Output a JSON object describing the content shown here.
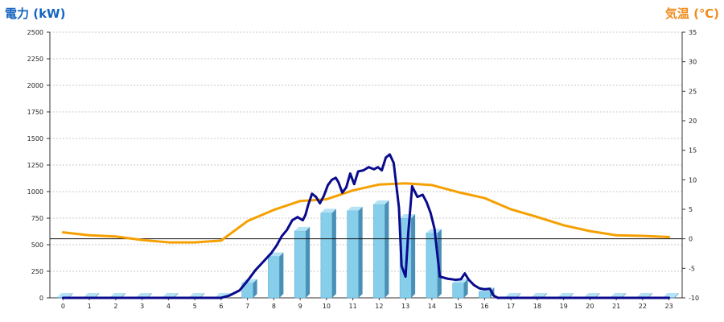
{
  "chart_data": {
    "type": "bar+line",
    "left_axis": {
      "title": "電力 (kW)",
      "min": 0,
      "max": 2500,
      "ticks": [
        0,
        250,
        500,
        750,
        1000,
        1250,
        1500,
        1750,
        2000,
        2250,
        2500
      ]
    },
    "right_axis": {
      "title": "気温 (℃)",
      "min": -10,
      "max": 35,
      "ticks": [
        -10,
        -5,
        0,
        5,
        10,
        15,
        20,
        25,
        30,
        35
      ]
    },
    "categories": [
      "0",
      "1",
      "2",
      "3",
      "4",
      "5",
      "6",
      "7",
      "8",
      "9",
      "10",
      "11",
      "12",
      "13",
      "14",
      "15",
      "16",
      "17",
      "18",
      "19",
      "20",
      "21",
      "22",
      "23"
    ],
    "grid": true,
    "bars": {
      "axis": "left",
      "color": "#87ceeb",
      "values": [
        5,
        5,
        5,
        5,
        5,
        5,
        5,
        140,
        390,
        630,
        800,
        820,
        880,
        750,
        610,
        140,
        60,
        5,
        5,
        5,
        5,
        5,
        5,
        5
      ]
    },
    "power_line": {
      "axis": "left",
      "color": "#0a0a8c",
      "points": [
        [
          0,
          0
        ],
        [
          1,
          0
        ],
        [
          2,
          0
        ],
        [
          3,
          0
        ],
        [
          4,
          0
        ],
        [
          5,
          0
        ],
        [
          6,
          0
        ],
        [
          6.3,
          20
        ],
        [
          6.7,
          70
        ],
        [
          7,
          160
        ],
        [
          7.3,
          260
        ],
        [
          7.6,
          340
        ],
        [
          7.9,
          420
        ],
        [
          8.1,
          490
        ],
        [
          8.3,
          580
        ],
        [
          8.5,
          640
        ],
        [
          8.7,
          730
        ],
        [
          8.9,
          760
        ],
        [
          9.1,
          730
        ],
        [
          9.2,
          780
        ],
        [
          9.3,
          870
        ],
        [
          9.45,
          980
        ],
        [
          9.6,
          950
        ],
        [
          9.75,
          890
        ],
        [
          9.9,
          960
        ],
        [
          10.05,
          1060
        ],
        [
          10.2,
          1110
        ],
        [
          10.35,
          1130
        ],
        [
          10.45,
          1090
        ],
        [
          10.6,
          990
        ],
        [
          10.75,
          1040
        ],
        [
          10.9,
          1170
        ],
        [
          11.05,
          1070
        ],
        [
          11.2,
          1190
        ],
        [
          11.4,
          1200
        ],
        [
          11.6,
          1230
        ],
        [
          11.8,
          1210
        ],
        [
          11.95,
          1230
        ],
        [
          12.1,
          1200
        ],
        [
          12.25,
          1320
        ],
        [
          12.4,
          1350
        ],
        [
          12.55,
          1270
        ],
        [
          12.75,
          850
        ],
        [
          12.85,
          300
        ],
        [
          13.0,
          200
        ],
        [
          13.1,
          600
        ],
        [
          13.25,
          1050
        ],
        [
          13.45,
          950
        ],
        [
          13.65,
          970
        ],
        [
          13.8,
          900
        ],
        [
          13.95,
          800
        ],
        [
          14.1,
          650
        ],
        [
          14.3,
          200
        ],
        [
          14.6,
          180
        ],
        [
          14.9,
          170
        ],
        [
          15.1,
          175
        ],
        [
          15.25,
          230
        ],
        [
          15.4,
          170
        ],
        [
          15.6,
          120
        ],
        [
          15.8,
          90
        ],
        [
          16,
          80
        ],
        [
          16.2,
          85
        ],
        [
          16.35,
          20
        ],
        [
          16.5,
          0
        ],
        [
          17,
          0
        ],
        [
          18,
          0
        ],
        [
          19,
          0
        ],
        [
          20,
          0
        ],
        [
          21,
          0
        ],
        [
          22,
          0
        ],
        [
          23,
          0
        ]
      ]
    },
    "temperature_line": {
      "axis": "right",
      "color": "#f5a000",
      "x": [
        0,
        1,
        2,
        3,
        4,
        5,
        6,
        7,
        8,
        9,
        10,
        11,
        12,
        13,
        14,
        15,
        16,
        17,
        18,
        19,
        20,
        21,
        22,
        23
      ],
      "values": [
        1.1,
        0.6,
        0.4,
        -0.2,
        -0.6,
        -0.6,
        -0.3,
        3.0,
        4.9,
        6.4,
        6.7,
        8.2,
        9.2,
        9.4,
        9.1,
        7.9,
        6.9,
        5.0,
        3.7,
        2.3,
        1.3,
        0.6,
        0.5,
        0.3
      ]
    },
    "zero_reference_line_color": "#111111"
  }
}
